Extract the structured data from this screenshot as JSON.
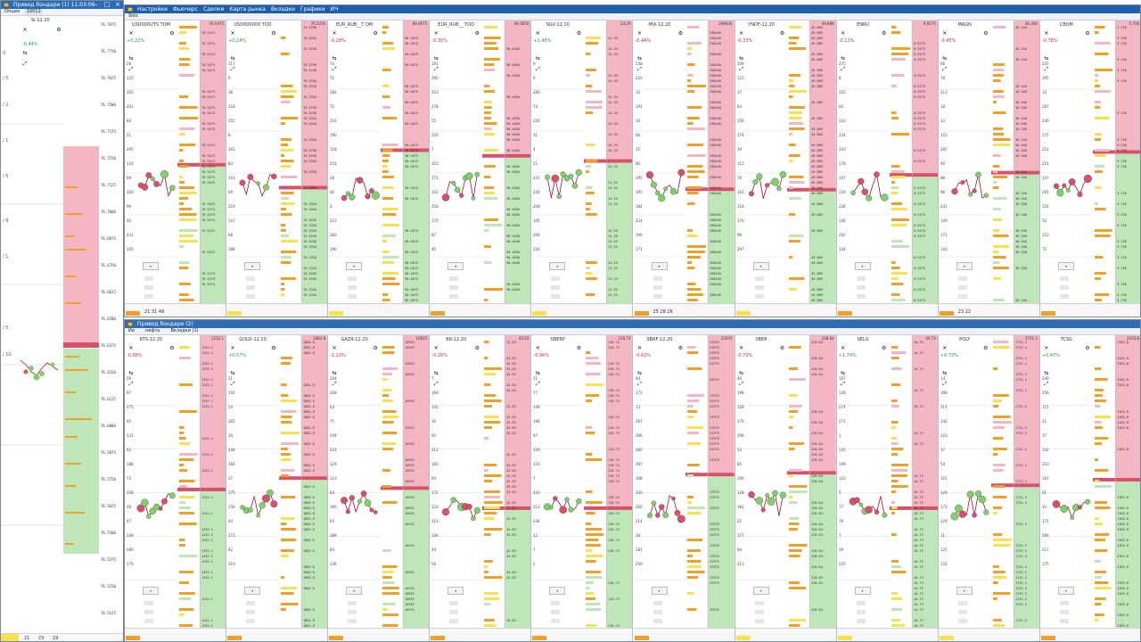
{
  "left_window": {
    "title": "Привод бондари (1) 11:03:06",
    "toolbar_left": "Опция",
    "toolbar_value": "10012",
    "ticker": "Si-12.20",
    "change": "-0.44%",
    "footer_values": [
      "21",
      "23",
      "19"
    ]
  },
  "top_window": {
    "title": "",
    "menu": [
      "Настройки",
      "Фьючерс",
      "Сделки",
      "Карта рынка",
      "Вкладки",
      "Графики",
      "ИЧ"
    ],
    "subheader": "Volo",
    "panels": [
      {
        "ticker": "USD000UTS TOM",
        "change": "+0.22%",
        "price_top": "76.5475",
        "foot": "21  31  48",
        "up": true
      },
      {
        "ticker": "USD000000 TOD",
        "change": "+0.24%",
        "price_top": "76.5250",
        "foot": "",
        "up": true
      },
      {
        "ticker": "EUR_RUB__T OM",
        "change": "-0.28%",
        "price_top": "90.4675",
        "foot": "",
        "up": false
      },
      {
        "ticker": "EUR_RUB__ TOD",
        "change": "-0.30%",
        "price_top": "90.4650",
        "foot": "",
        "up": false
      },
      {
        "ticker": "SILV-12.20",
        "change": "+1.46%",
        "price_top": "24.29",
        "foot": "",
        "up": true
      },
      {
        "ticker": "MIX-12.20",
        "change": "-0.44%",
        "price_top": "298440",
        "foot": "25  28  26",
        "up": false
      },
      {
        "ticker": "YNDF-12.20",
        "change": "-0.33%",
        "price_top": "49.889",
        "foot": "",
        "up": false
      },
      {
        "ticker": "ENRU",
        "change": "-0.11%",
        "price_top": "0.9275",
        "foot": "",
        "up": false
      },
      {
        "ticker": "MAGN",
        "change": "-0.45%",
        "price_top": "36.340",
        "foot": "23  22",
        "up": false
      },
      {
        "ticker": "CBOM",
        "change": "-0.78%",
        "price_top": "5.736",
        "foot": "",
        "up": false
      }
    ]
  },
  "bottom_window": {
    "title": "Привод бондари (2)",
    "menu": [
      "Ии",
      "нефть",
      "Вкладки (1)"
    ],
    "panels": [
      {
        "ticker": "RTS-12.20",
        "change": "-0.88%",
        "price_top": "1232.1",
        "up": false
      },
      {
        "ticker": "GOLD-12.20",
        "change": "+0.57%",
        "price_top": "1882.8",
        "up": true
      },
      {
        "ticker": "GAZR-12.20",
        "change": "-1.22%",
        "price_top": "16925",
        "up": false
      },
      {
        "ticker": "BR-12.20",
        "change": "-0.26%",
        "price_top": "42.63",
        "up": false
      },
      {
        "ticker": "SBERP",
        "change": "-0.96%",
        "price_top": "216.74",
        "up": false
      },
      {
        "ticker": "SBRF-12.20",
        "change": "-0.62%",
        "price_top": "22975",
        "up": false
      },
      {
        "ticker": "SBER",
        "change": "-0.70%",
        "price_top": "228.64",
        "up": false
      },
      {
        "ticker": "SELG",
        "change": "+1.74%",
        "price_top": "44.73",
        "up": true
      },
      {
        "ticker": "POLY",
        "change": "+0.72%",
        "price_top": "1731.2",
        "up": true
      },
      {
        "ticker": "TCSG",
        "change": "+0.47%",
        "price_top": "2163.8",
        "up": true
      }
    ]
  },
  "colors": {
    "title_active": "#1b5fae",
    "title_inactive": "#2f6eb5",
    "ask": "#f4b6c2",
    "bid": "#bfe6b8",
    "orange": "#f2a024",
    "yellow": "#f7e24a",
    "line": "#a01030",
    "bubble_green": "#7fcf6a",
    "bubble_red": "#d8506a"
  }
}
